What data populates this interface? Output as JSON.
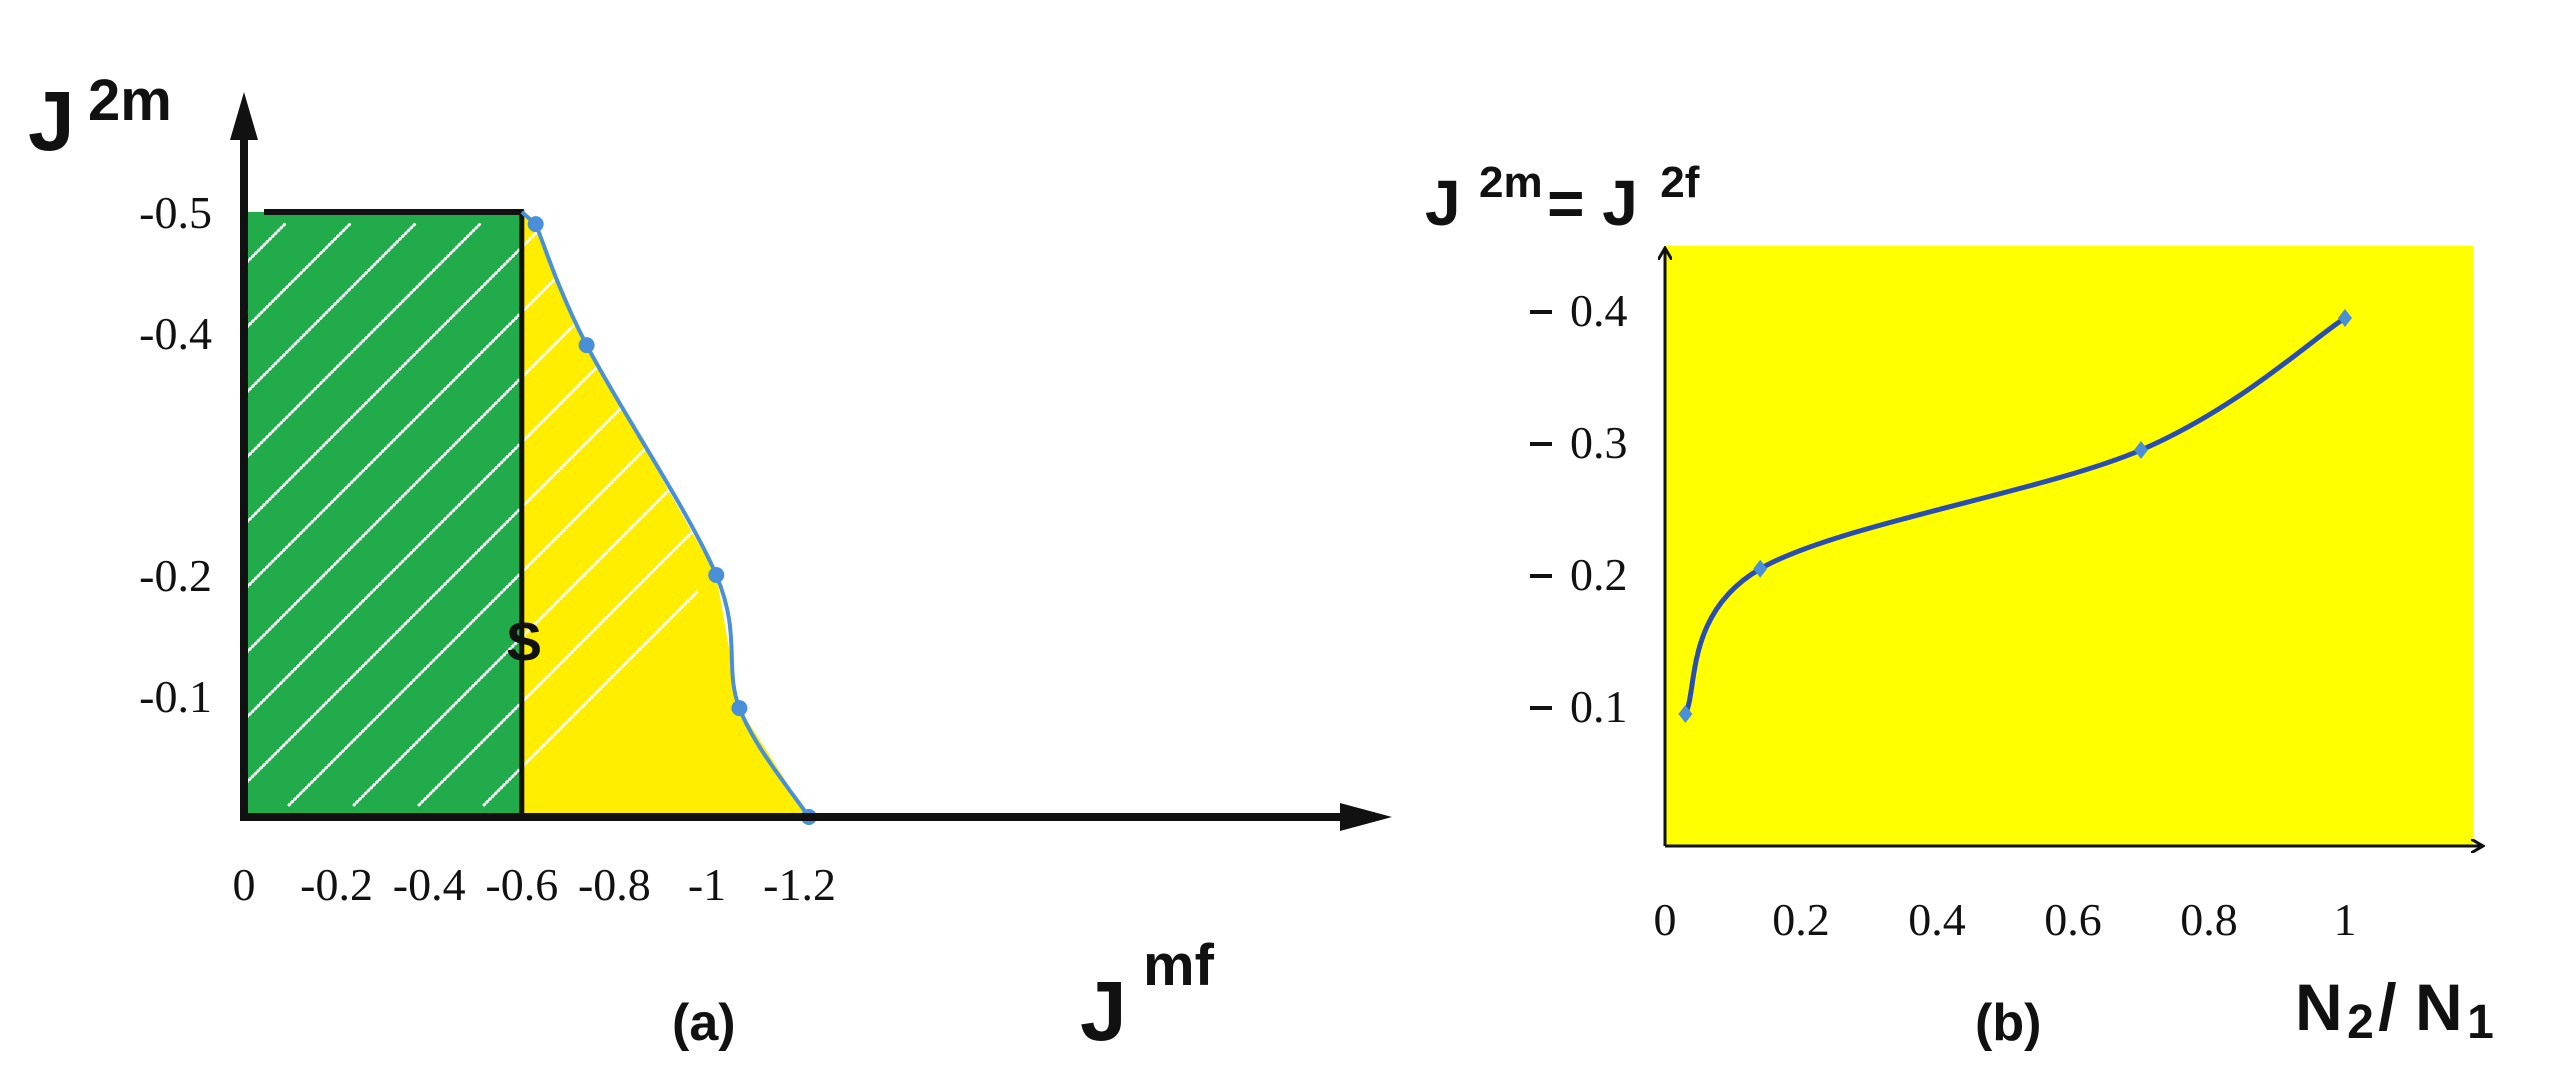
{
  "chart_data": [
    {
      "panel": "(a)",
      "type": "line",
      "ylabel_base": "J",
      "ylabel_sup": "2m",
      "xlabel_base": "J",
      "xlabel_sup": "mf",
      "xlim": [
        0,
        -1.3
      ],
      "ylim": [
        0,
        -0.5
      ],
      "x_ticks": [
        "0",
        "-0.2",
        "-0.4",
        "-0.6",
        "-0.8",
        "-1",
        "-1.2"
      ],
      "y_ticks": [
        "-0.5",
        "-0.4",
        "-0.2",
        "-0.1"
      ],
      "region_label": "S",
      "colors": {
        "hatched_region": "#22ab4a",
        "region_s": "#ffee00",
        "line": "#4a90d9"
      },
      "hatched_region": {
        "x": [
          0,
          -0.6
        ],
        "y": [
          0,
          -0.5
        ]
      },
      "points": [
        {
          "x": -0.63,
          "y": -0.49
        },
        {
          "x": -0.74,
          "y": -0.39
        },
        {
          "x": -1.02,
          "y": -0.2
        },
        {
          "x": -1.07,
          "y": -0.09
        },
        {
          "x": -1.22,
          "y": 0.0
        }
      ]
    },
    {
      "panel": "(b)",
      "type": "line",
      "ylabel_parts": [
        "J",
        "2m",
        "= J",
        "2f"
      ],
      "xlabel_parts": [
        "N",
        "2",
        " / N",
        "1"
      ],
      "xlim": [
        0,
        1.2
      ],
      "ylim": [
        0,
        0.48
      ],
      "x_ticks": [
        "0",
        "0.2",
        "0.4",
        "0.6",
        "0.8",
        "1"
      ],
      "y_ticks": [
        "0.4",
        "0.3",
        "0.2",
        "0.1"
      ],
      "colors": {
        "background": "#ffff00",
        "line": "#2a4db0",
        "markers": "#4a90d9"
      },
      "points": [
        {
          "x": 0.03,
          "y": 0.1
        },
        {
          "x": 0.14,
          "y": 0.21
        },
        {
          "x": 0.7,
          "y": 0.3
        },
        {
          "x": 1.0,
          "y": 0.4
        }
      ]
    }
  ]
}
